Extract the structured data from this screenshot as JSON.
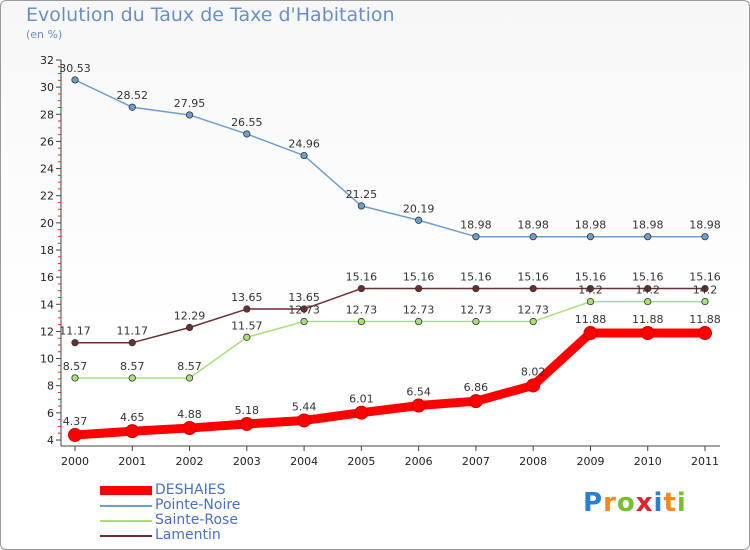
{
  "chart_data": {
    "type": "line",
    "title": "Evolution du Taux de Taxe d'Habitation",
    "subtitle": "(en %)",
    "x": [
      "2000",
      "2001",
      "2002",
      "2003",
      "2004",
      "2005",
      "2006",
      "2007",
      "2008",
      "2009",
      "2010",
      "2011"
    ],
    "ylim": [
      4,
      32
    ],
    "yticks": [
      4,
      6,
      8,
      10,
      12,
      14,
      16,
      18,
      20,
      22,
      24,
      26,
      28,
      30,
      32
    ],
    "series": [
      {
        "name": "Pointe-Noire",
        "color": "#6e9fcc",
        "values": [
          30.53,
          28.52,
          27.95,
          26.55,
          24.96,
          21.25,
          20.19,
          18.98,
          18.98,
          18.98,
          18.98,
          18.98
        ],
        "labels": [
          "30.53",
          "28.52",
          "27.95",
          "26.55",
          "24.96",
          "21.25",
          "20.19",
          "18.98",
          "18.98",
          "18.98",
          "18.98",
          "18.98"
        ]
      },
      {
        "name": "Lamentin",
        "color": "#6b2f33",
        "values": [
          11.17,
          11.17,
          12.29,
          13.65,
          13.65,
          15.16,
          15.16,
          15.16,
          15.16,
          15.16,
          15.16,
          15.16
        ],
        "labels": [
          "11.17",
          "11.17",
          "12.29",
          "13.65",
          "13.65",
          "15.16",
          "15.16",
          "15.16",
          "15.16",
          "15.16",
          "15.16",
          "15.16"
        ]
      },
      {
        "name": "Sainte-Rose",
        "color": "#a8e07a",
        "values": [
          8.57,
          8.57,
          8.57,
          11.57,
          12.73,
          12.73,
          12.73,
          12.73,
          12.73,
          14.2,
          14.2,
          14.2
        ],
        "labels": [
          "8.57",
          "8.57",
          "8.57",
          "11.57",
          "12.73",
          "12.73",
          "12.73",
          "12.73",
          "12.73",
          "14.2",
          "14.2",
          "14.2"
        ]
      },
      {
        "name": "DESHAIES",
        "color": "#ff0000",
        "values": [
          4.37,
          4.65,
          4.88,
          5.18,
          5.44,
          6.01,
          6.54,
          6.86,
          8.02,
          11.88,
          11.88,
          11.88
        ],
        "labels": [
          "4.37",
          "4.65",
          "4.88",
          "5.18",
          "5.44",
          "6.01",
          "6.54",
          "6.86",
          "8.02",
          "11.88",
          "11.88",
          "11.88"
        ]
      }
    ],
    "legend": [
      "DESHAIES",
      "Pointe-Noire",
      "Sainte-Rose",
      "Lamentin"
    ],
    "grid": false
  },
  "logo": {
    "letters": [
      "P",
      "r",
      "o",
      "x",
      "i",
      "t",
      "i"
    ],
    "colors": [
      "#2a7fd4",
      "#f08a1c",
      "#7cbf2e",
      "#e0242a",
      "#2a7fd4",
      "#f08a1c",
      "#7cbf2e"
    ]
  }
}
